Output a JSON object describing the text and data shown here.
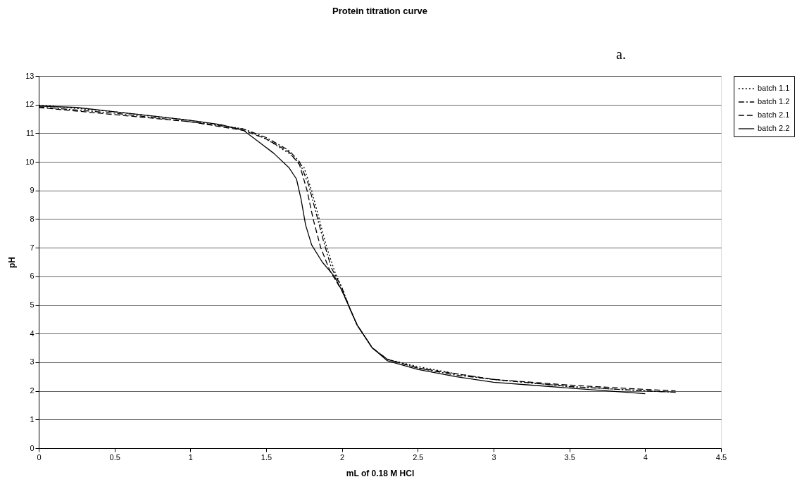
{
  "chart_data": {
    "type": "line",
    "title": "Protein titration curve",
    "xlabel": "mL of 0.18 M HCl",
    "ylabel": "pH",
    "annotations": [
      "a."
    ],
    "xlim": [
      0,
      4.5
    ],
    "xticks": [
      0,
      0.5,
      1,
      1.5,
      2,
      2.5,
      3,
      3.5,
      4,
      4.5
    ],
    "ylim": [
      0,
      13
    ],
    "yticks": [
      0,
      1,
      2,
      3,
      4,
      5,
      6,
      7,
      8,
      9,
      10,
      11,
      12,
      13
    ],
    "grid": "y",
    "legend": "right",
    "marker": "none",
    "series": [
      {
        "name": "batch 1.1",
        "color": "#000000",
        "line_style": "dotted",
        "x": [
          0,
          0.5,
          1,
          1.35,
          1.5,
          1.65,
          1.75,
          1.8,
          1.85,
          1.9,
          1.95,
          2.0,
          2.05,
          2.1,
          2.2,
          2.3,
          2.5,
          2.75,
          3.0,
          3.5,
          4.0,
          4.2
        ],
        "values": [
          11.98,
          11.75,
          11.45,
          11.15,
          10.8,
          10.3,
          9.8,
          9.0,
          8.0,
          7.0,
          6.2,
          5.6,
          4.9,
          4.3,
          3.5,
          3.1,
          2.85,
          2.6,
          2.4,
          2.15,
          2.0,
          1.95
        ]
      },
      {
        "name": "batch 1.2",
        "color": "#000000",
        "line_style": "dashdot",
        "x": [
          0,
          0.5,
          1,
          1.35,
          1.5,
          1.65,
          1.72,
          1.78,
          1.83,
          1.88,
          1.93,
          2.0,
          2.05,
          2.1,
          2.2,
          2.3,
          2.5,
          2.75,
          3.0,
          3.5,
          4.0,
          4.2
        ],
        "values": [
          11.92,
          11.7,
          11.4,
          11.15,
          10.85,
          10.4,
          10.0,
          9.2,
          8.2,
          7.2,
          6.3,
          5.6,
          4.9,
          4.3,
          3.5,
          3.1,
          2.8,
          2.55,
          2.4,
          2.15,
          2.0,
          1.95
        ]
      },
      {
        "name": "batch 2.1",
        "color": "#000000",
        "line_style": "dashed",
        "x": [
          0,
          0.5,
          1,
          1.35,
          1.5,
          1.65,
          1.72,
          1.77,
          1.81,
          1.86,
          1.92,
          2.0,
          2.05,
          2.1,
          2.2,
          2.3,
          2.5,
          2.75,
          3.0,
          3.5,
          4.0,
          4.2
        ],
        "values": [
          11.9,
          11.65,
          11.4,
          11.1,
          10.8,
          10.35,
          9.9,
          9.0,
          8.0,
          7.0,
          6.2,
          5.5,
          4.9,
          4.3,
          3.5,
          3.1,
          2.8,
          2.6,
          2.4,
          2.2,
          2.05,
          2.0
        ]
      },
      {
        "name": "batch 2.2",
        "color": "#000000",
        "line_style": "solid",
        "x": [
          0,
          0.25,
          0.5,
          0.75,
          1.0,
          1.2,
          1.35,
          1.45,
          1.55,
          1.65,
          1.7,
          1.73,
          1.76,
          1.8,
          1.87,
          1.95,
          2.0,
          2.05,
          2.1,
          2.2,
          2.3,
          2.5,
          2.75,
          3.0,
          3.25,
          3.5,
          3.75,
          4.0
        ],
        "values": [
          11.95,
          11.9,
          11.75,
          11.6,
          11.45,
          11.3,
          11.1,
          10.7,
          10.3,
          9.8,
          9.4,
          8.7,
          7.8,
          7.1,
          6.5,
          6.0,
          5.5,
          4.9,
          4.3,
          3.5,
          3.05,
          2.75,
          2.5,
          2.3,
          2.2,
          2.1,
          2.0,
          1.9
        ]
      }
    ]
  }
}
